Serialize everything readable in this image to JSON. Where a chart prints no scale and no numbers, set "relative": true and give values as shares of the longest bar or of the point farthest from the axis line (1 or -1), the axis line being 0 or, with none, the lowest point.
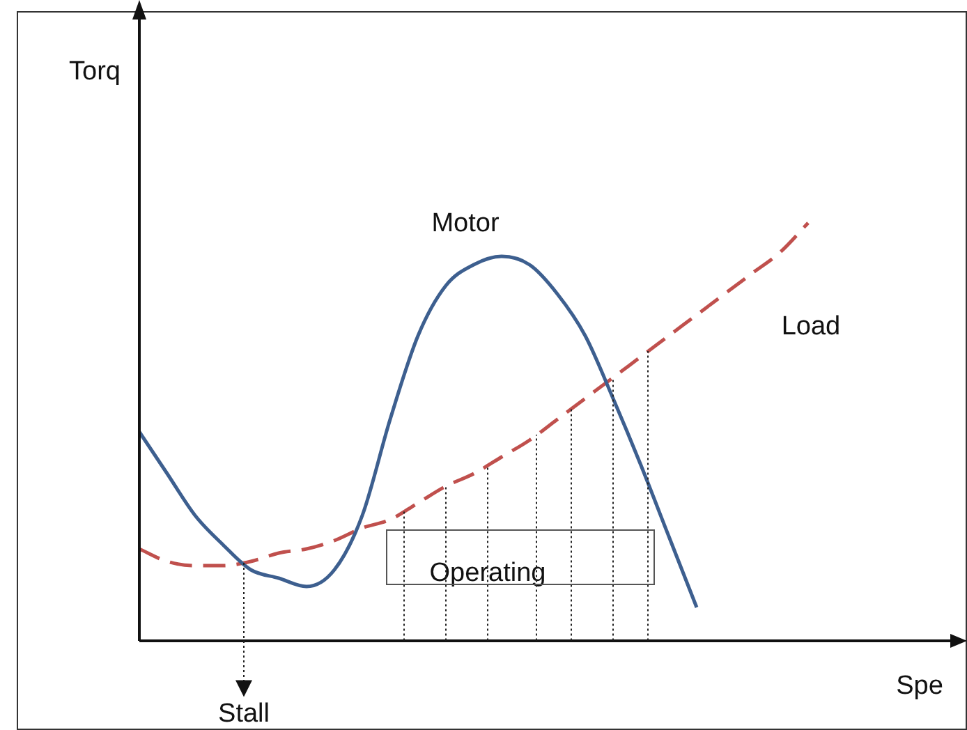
{
  "chart_data": {
    "type": "line",
    "relative": true,
    "xlabel": "Spe",
    "tick_labels": false,
    "legend": false,
    "marker": "none",
    "categories": [
      null,
      null,
      null,
      null,
      null,
      null,
      null,
      null,
      null,
      null,
      null,
      null,
      null,
      null,
      null,
      null,
      null,
      null,
      null,
      null,
      null,
      null,
      null,
      null,
      null,
      null,
      null,
      null,
      null,
      null
    ],
    "series": [
      {
        "name": "Motor",
        "color": "#3d5f8f",
        "line_style": "solid",
        "values": [
          0.5,
          0.4,
          0.3,
          0.23,
          0.17,
          0.15,
          0.13,
          0.17,
          0.3,
          0.53,
          0.73,
          0.85,
          0.9,
          0.92,
          0.9,
          0.83,
          0.73,
          0.58,
          0.42,
          0.25,
          0.08,
          null,
          null,
          null,
          null,
          null,
          null,
          null,
          null,
          null
        ]
      },
      {
        "name": "Load",
        "color": "#c0504d",
        "line_style": "dashed",
        "values": [
          0.22,
          0.19,
          0.18,
          0.18,
          0.19,
          0.21,
          0.22,
          0.24,
          0.27,
          0.29,
          0.33,
          0.37,
          0.4,
          0.44,
          0.48,
          0.53,
          0.58,
          0.63,
          0.68,
          0.73,
          0.78,
          0.83,
          0.88,
          0.93,
          1,
          null,
          null,
          null,
          null,
          null
        ]
      }
    ],
    "annotations": [
      "Torq",
      "Stall",
      "Operating"
    ]
  }
}
